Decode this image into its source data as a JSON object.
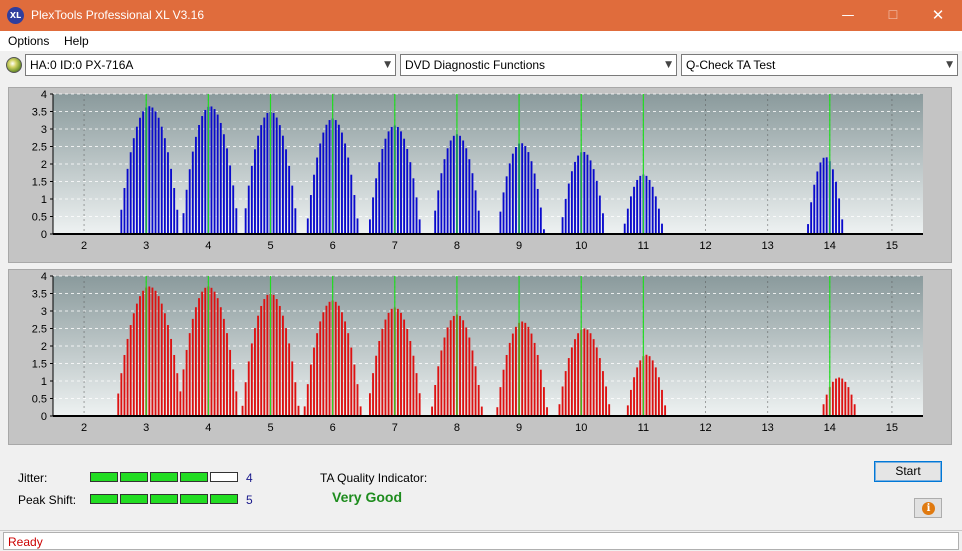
{
  "window": {
    "title": "PlexTools Professional XL V3.16",
    "icon_text": "XL",
    "minimize_glyph": "—",
    "maximize_glyph": "☐",
    "close_glyph": "✕"
  },
  "menu": [
    "Options",
    "Help"
  ],
  "toolbar": {
    "drive": "HA:0 ID:0  PX-716A",
    "function": "DVD Diagnostic Functions",
    "test": "Q-Check TA Test",
    "dropdown_glyph": "▼"
  },
  "colors": {
    "titlebar": "#e06c3c",
    "top_bars": "#0a0acc",
    "bottom_bars": "#dd1111",
    "marker_lines": "#22dd22",
    "quality_text": "#1e8c1e",
    "status_text": "#cc0000"
  },
  "chart_data": [
    {
      "type": "bar",
      "name": "top",
      "xlim": [
        1.5,
        15.5
      ],
      "ylim": [
        0,
        4
      ],
      "x_ticks": [
        2,
        3,
        4,
        5,
        6,
        7,
        8,
        9,
        10,
        11,
        12,
        13,
        14,
        15
      ],
      "y_ticks": [
        0,
        0.5,
        1,
        1.5,
        2,
        2.5,
        3,
        3.5,
        4
      ],
      "y_tick_labels": [
        "0",
        "0.5",
        "1",
        "1.5",
        "2",
        "2.5",
        "3",
        "3.5",
        "4"
      ],
      "marker_lines": [
        3,
        4,
        5,
        6,
        7,
        8,
        9,
        10,
        11,
        14
      ],
      "bar_color": "#0a0acc",
      "peaks": [
        {
          "center": 3.05,
          "height": 3.65,
          "half_width": 0.5
        },
        {
          "center": 4.03,
          "height": 3.65,
          "half_width": 0.47
        },
        {
          "center": 5.0,
          "height": 3.5,
          "half_width": 0.45
        },
        {
          "center": 6.0,
          "height": 3.3,
          "half_width": 0.43
        },
        {
          "center": 7.0,
          "height": 3.1,
          "half_width": 0.43
        },
        {
          "center": 8.0,
          "height": 2.85,
          "half_width": 0.4
        },
        {
          "center": 9.03,
          "height": 2.6,
          "half_width": 0.38
        },
        {
          "center": 10.03,
          "height": 2.35,
          "half_width": 0.37
        },
        {
          "center": 11.0,
          "height": 1.7,
          "half_width": 0.33
        },
        {
          "center": 13.93,
          "height": 2.2,
          "half_width": 0.3
        }
      ]
    },
    {
      "type": "bar",
      "name": "bottom",
      "xlim": [
        1.5,
        15.5
      ],
      "ylim": [
        0,
        4
      ],
      "x_ticks": [
        2,
        3,
        4,
        5,
        6,
        7,
        8,
        9,
        10,
        11,
        12,
        13,
        14,
        15
      ],
      "y_ticks": [
        0,
        0.5,
        1,
        1.5,
        2,
        2.5,
        3,
        3.5,
        4
      ],
      "y_tick_labels": [
        "0",
        "0.5",
        "1",
        "1.5",
        "2",
        "2.5",
        "3",
        "3.5",
        "4"
      ],
      "marker_lines": [
        3,
        4,
        5,
        6,
        7,
        8,
        9,
        10,
        11,
        14
      ],
      "bar_color": "#dd1111",
      "peaks": [
        {
          "center": 3.05,
          "height": 3.7,
          "half_width": 0.55
        },
        {
          "center": 4.0,
          "height": 3.7,
          "half_width": 0.5
        },
        {
          "center": 5.0,
          "height": 3.5,
          "half_width": 0.47
        },
        {
          "center": 6.0,
          "height": 3.3,
          "half_width": 0.47
        },
        {
          "center": 7.0,
          "height": 3.1,
          "half_width": 0.45
        },
        {
          "center": 8.0,
          "height": 2.9,
          "half_width": 0.42
        },
        {
          "center": 9.05,
          "height": 2.7,
          "half_width": 0.42
        },
        {
          "center": 10.05,
          "height": 2.5,
          "half_width": 0.43
        },
        {
          "center": 11.05,
          "height": 1.75,
          "half_width": 0.33
        },
        {
          "center": 14.15,
          "height": 1.1,
          "half_width": 0.3
        }
      ]
    }
  ],
  "metrics": {
    "jitter": {
      "label": "Jitter:",
      "value": "4",
      "segments_on": 4,
      "segments_total": 5
    },
    "peak_shift": {
      "label": "Peak Shift:",
      "value": "5",
      "segments_on": 5,
      "segments_total": 5
    }
  },
  "ta_quality": {
    "label": "TA Quality Indicator:",
    "value": "Very Good"
  },
  "buttons": {
    "start": "Start",
    "info_glyph": "i"
  },
  "status": "Ready"
}
